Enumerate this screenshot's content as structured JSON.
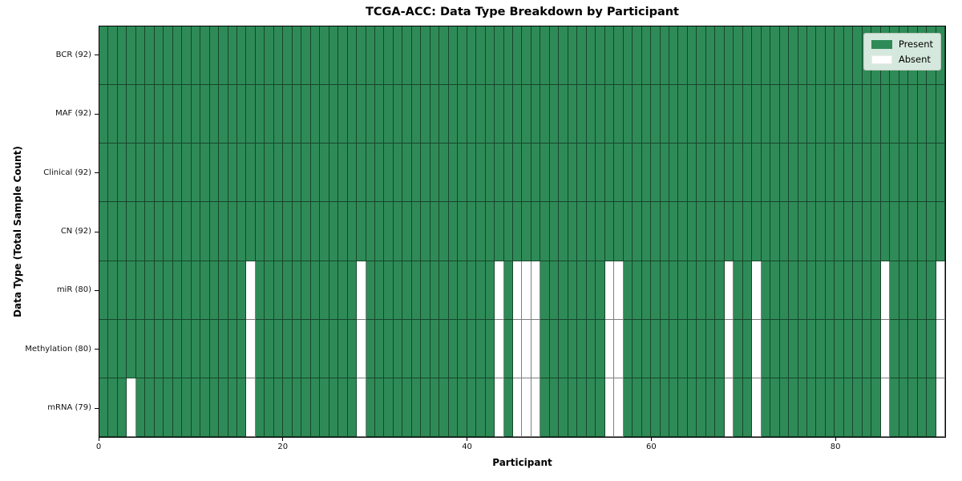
{
  "chart_data": {
    "type": "heatmap",
    "title": "TCGA-ACC: Data Type Breakdown by Participant",
    "xlabel": "Participant",
    "ylabel": "Data Type (Total Sample Count)",
    "x_ticks": [
      0,
      20,
      40,
      60,
      80
    ],
    "x_range": [
      0,
      92
    ],
    "n_participants": 92,
    "grid": true,
    "legend_position": "upper right",
    "rows": [
      {
        "label": "BCR (92)",
        "data_type": "BCR",
        "present_count": 92,
        "absent_participants": []
      },
      {
        "label": "MAF (92)",
        "data_type": "MAF",
        "present_count": 92,
        "absent_participants": []
      },
      {
        "label": "Clinical (92)",
        "data_type": "Clinical",
        "present_count": 92,
        "absent_participants": []
      },
      {
        "label": "CN (92)",
        "data_type": "CN",
        "present_count": 92,
        "absent_participants": []
      },
      {
        "label": "miR (80)",
        "data_type": "miR",
        "present_count": 80,
        "absent_participants": [
          16,
          28,
          43,
          45,
          46,
          47,
          55,
          56,
          68,
          71,
          85,
          91
        ]
      },
      {
        "label": "Methylation (80)",
        "data_type": "Methylation",
        "present_count": 80,
        "absent_participants": [
          16,
          28,
          43,
          45,
          46,
          47,
          55,
          56,
          68,
          71,
          85,
          91
        ]
      },
      {
        "label": "mRNA (79)",
        "data_type": "mRNA",
        "present_count": 79,
        "absent_participants": [
          3,
          16,
          28,
          43,
          45,
          46,
          47,
          55,
          56,
          68,
          71,
          85,
          91
        ]
      }
    ],
    "legend": [
      {
        "label": "Present",
        "color": "#2e8b57"
      },
      {
        "label": "Absent",
        "color": "#ffffff"
      }
    ],
    "colors": {
      "present": "#2e8b57",
      "absent": "#ffffff",
      "legend_background": "#d5e8dd"
    }
  }
}
